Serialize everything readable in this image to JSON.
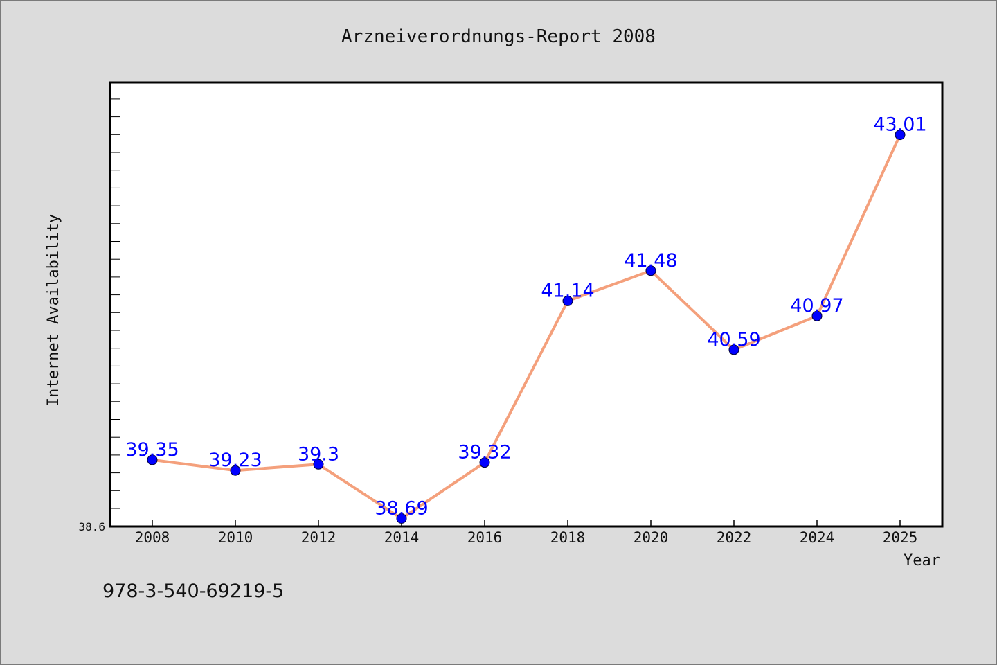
{
  "chart_data": {
    "type": "line",
    "title": "Arzneiverordnungs-Report 2008",
    "xlabel": "Year",
    "ylabel": "Internet Availability",
    "x": [
      "2008",
      "2010",
      "2012",
      "2014",
      "2016",
      "2018",
      "2020",
      "2022",
      "2024",
      "2025"
    ],
    "series": [
      {
        "values": [
          39.35,
          39.23,
          39.3,
          38.69,
          39.32,
          41.14,
          41.48,
          40.59,
          40.97,
          43.01
        ],
        "data_labels": [
          "39.35",
          "39.23",
          "39.3",
          "38.69",
          "39.32",
          "41.14",
          "41.48",
          "40.59",
          "40.97",
          "43.01"
        ]
      }
    ],
    "ylim": [
      38.6,
      43.6
    ],
    "y_tick_labels": [
      "38.6"
    ],
    "grid": false,
    "colors": {
      "line": "#f4a07c",
      "marker": "#0000ff",
      "labels": "#0000ff",
      "plot_bg": "#ffffff",
      "page_bg": "#dcdcdc"
    }
  },
  "footer": {
    "text": "978-3-540-69219-5"
  }
}
